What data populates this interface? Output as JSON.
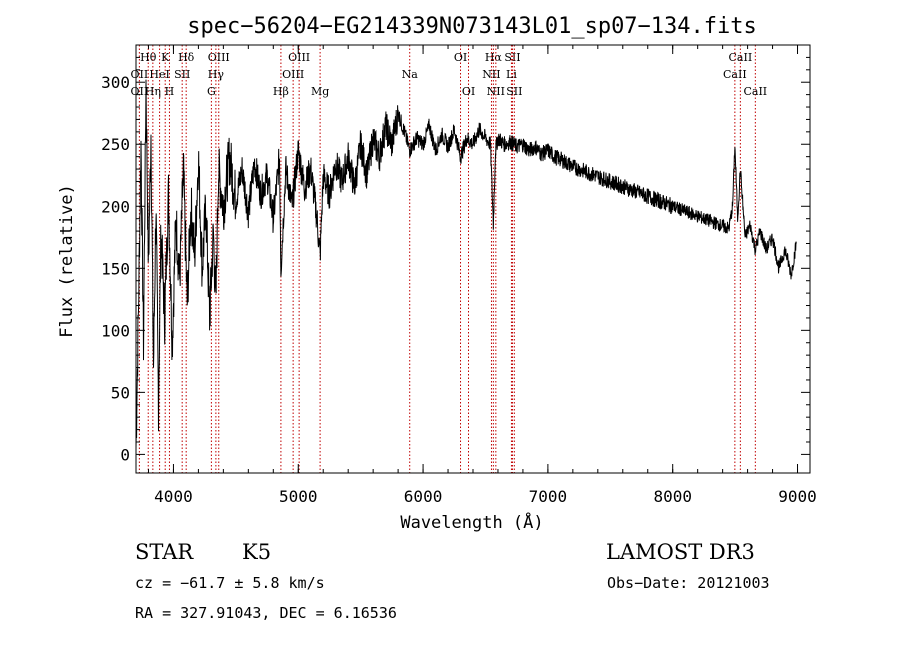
{
  "chart_data": {
    "type": "line",
    "title": "spec−56204−EG214339N073143L01_sp07−134.fits",
    "xlabel": "Wavelength (Å)",
    "ylabel": "Flux (relative)",
    "xlim": [
      3700,
      9100
    ],
    "ylim": [
      -15,
      330
    ],
    "x_ticks": [
      4000,
      5000,
      6000,
      7000,
      8000,
      9000
    ],
    "y_ticks": [
      0,
      50,
      100,
      150,
      200,
      250,
      300
    ],
    "series": [
      {
        "name": "flux",
        "x": [
          3700,
          3720,
          3740,
          3760,
          3780,
          3800,
          3820,
          3840,
          3860,
          3880,
          3900,
          3930,
          3960,
          3990,
          4020,
          4050,
          4080,
          4110,
          4140,
          4170,
          4200,
          4230,
          4260,
          4290,
          4320,
          4340,
          4360,
          4400,
          4450,
          4500,
          4550,
          4600,
          4650,
          4700,
          4750,
          4800,
          4850,
          4861,
          4900,
          4950,
          5000,
          5050,
          5100,
          5150,
          5175,
          5200,
          5250,
          5300,
          5350,
          5400,
          5450,
          5500,
          5550,
          5600,
          5650,
          5700,
          5750,
          5800,
          5850,
          5893,
          5950,
          6000,
          6050,
          6100,
          6150,
          6200,
          6250,
          6300,
          6350,
          6400,
          6450,
          6500,
          6540,
          6563,
          6580,
          6600,
          6650,
          6700,
          6750,
          6800,
          6850,
          6900,
          6950,
          7000,
          7050,
          7100,
          7150,
          7200,
          7250,
          7300,
          7350,
          7400,
          7450,
          7500,
          7550,
          7600,
          7650,
          7700,
          7750,
          7800,
          7850,
          7900,
          7950,
          8000,
          8050,
          8100,
          8150,
          8200,
          8250,
          8300,
          8350,
          8400,
          8450,
          8480,
          8498,
          8520,
          8542,
          8580,
          8620,
          8662,
          8700,
          8750,
          8800,
          8850,
          8900,
          8950,
          8990
        ],
        "y": [
          5,
          120,
          250,
          90,
          300,
          150,
          260,
          70,
          200,
          40,
          180,
          110,
          210,
          90,
          190,
          140,
          230,
          120,
          200,
          160,
          240,
          150,
          200,
          110,
          180,
          120,
          230,
          200,
          240,
          205,
          230,
          195,
          235,
          210,
          225,
          190,
          240,
          150,
          230,
          200,
          245,
          215,
          230,
          190,
          160,
          225,
          210,
          235,
          220,
          240,
          215,
          250,
          225,
          255,
          240,
          265,
          250,
          275,
          260,
          245,
          255,
          250,
          265,
          245,
          258,
          248,
          262,
          240,
          255,
          250,
          262,
          255,
          250,
          185,
          245,
          255,
          250,
          252,
          248,
          250,
          245,
          248,
          242,
          245,
          240,
          238,
          235,
          232,
          230,
          228,
          226,
          224,
          222,
          220,
          218,
          216,
          214,
          212,
          210,
          208,
          206,
          204,
          202,
          200,
          198,
          196,
          194,
          192,
          190,
          188,
          186,
          184,
          182,
          200,
          250,
          190,
          230,
          175,
          185,
          165,
          180,
          165,
          175,
          150,
          165,
          145,
          170
        ]
      }
    ],
    "spectral_lines": [
      {
        "label": "Hθ",
        "wavelength": 3798,
        "row": 0
      },
      {
        "label": "K",
        "wavelength": 3934,
        "row": 0
      },
      {
        "label": "Hδ",
        "wavelength": 4102,
        "row": 0
      },
      {
        "label": "OII",
        "wavelength": 3727,
        "row": 1
      },
      {
        "label": "HeI",
        "wavelength": 3889,
        "row": 1
      },
      {
        "label": "SII",
        "wavelength": 4070,
        "row": 1
      },
      {
        "label": "OII",
        "wavelength": 3727,
        "row": 2
      },
      {
        "label": "Hη",
        "wavelength": 3835,
        "row": 2
      },
      {
        "label": "H",
        "wavelength": 3968,
        "row": 2
      },
      {
        "label": "OIII",
        "wavelength": 4363,
        "row": 0
      },
      {
        "label": "Hγ",
        "wavelength": 4340,
        "row": 1
      },
      {
        "label": "G",
        "wavelength": 4304,
        "row": 2
      },
      {
        "label": "OIII",
        "wavelength": 5007,
        "row": 0
      },
      {
        "label": "OIII",
        "wavelength": 4959,
        "row": 1
      },
      {
        "label": "Hβ",
        "wavelength": 4861,
        "row": 2
      },
      {
        "label": "Mg",
        "wavelength": 5175,
        "row": 2
      },
      {
        "label": "Na",
        "wavelength": 5893,
        "row": 1
      },
      {
        "label": "OI",
        "wavelength": 6300,
        "row": 0
      },
      {
        "label": "OI",
        "wavelength": 6364,
        "row": 2
      },
      {
        "label": "Hα",
        "wavelength": 6563,
        "row": 0
      },
      {
        "label": "SII",
        "wavelength": 6716,
        "row": 0
      },
      {
        "label": "NII",
        "wavelength": 6548,
        "row": 1
      },
      {
        "label": "Li",
        "wavelength": 6708,
        "row": 1
      },
      {
        "label": "NII",
        "wavelength": 6583,
        "row": 2
      },
      {
        "label": "SII",
        "wavelength": 6731,
        "row": 2
      },
      {
        "label": "CaII",
        "wavelength": 8542,
        "row": 0
      },
      {
        "label": "CaII",
        "wavelength": 8498,
        "row": 1
      },
      {
        "label": "CaII",
        "wavelength": 8662,
        "row": 2
      }
    ]
  },
  "info": {
    "object_class": "STAR",
    "subclass": "K5",
    "survey": "LAMOST DR3",
    "redshift_line": "cz = −61.7 ± 5.8 km/s",
    "obs_date": "Obs−Date: 20121003",
    "coords": "RA = 327.91043, DEC =    6.16536"
  },
  "colors": {
    "spectrum": "#000000",
    "line_markers": "#c00000",
    "background": "#ffffff"
  }
}
